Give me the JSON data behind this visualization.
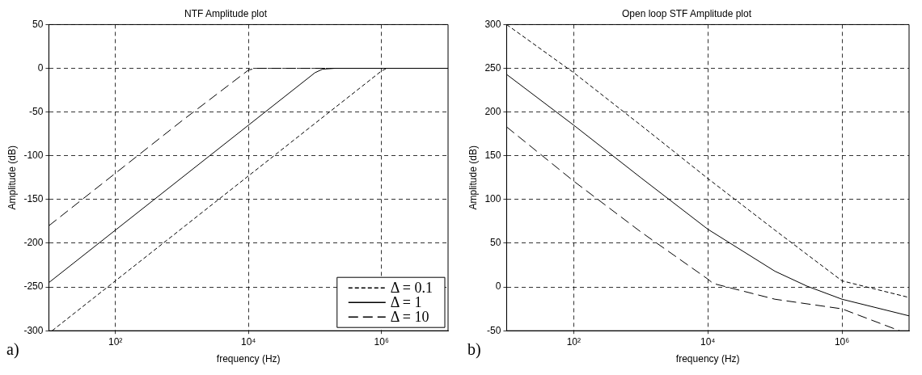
{
  "chart_data": [
    {
      "type": "line",
      "title": "NTF Amplitude plot",
      "xlabel": "frequency (Hz)",
      "ylabel": "Amplitude (dB)",
      "log": "x",
      "grid": true,
      "legend": "bottom right",
      "xlim": [
        10,
        10000000
      ],
      "ylim": [
        -300,
        50
      ],
      "xticks": [
        {
          "value": 100,
          "label": "10²"
        },
        {
          "value": 10000,
          "label": "10⁴"
        },
        {
          "value": 1000000,
          "label": "10⁶"
        }
      ],
      "yticks": [
        -300,
        -250,
        -200,
        -150,
        -100,
        -50,
        0,
        50
      ],
      "annotations": [
        "a)"
      ],
      "series": [
        {
          "name": "Δ = 0.1",
          "color": "#000000",
          "line_style": "dotted",
          "x": [
            11.2,
            100,
            1000,
            10000,
            100000,
            1000000,
            1200000,
            10000000
          ],
          "values": [
            -300,
            -243,
            -183,
            -123,
            -63,
            -3,
            0,
            0
          ]
        },
        {
          "name": "Δ = 1",
          "color": "#000000",
          "line_style": "solid",
          "x": [
            10,
            100,
            1000,
            10000,
            100000,
            130000,
            200000,
            10000000
          ],
          "values": [
            -245,
            -185,
            -125,
            -65,
            -5,
            -1,
            0,
            0
          ]
        },
        {
          "name": "Δ = 10",
          "color": "#000000",
          "line_style": "dashed",
          "x": [
            10,
            100,
            1000,
            10000,
            13000,
            10000000
          ],
          "values": [
            -180,
            -120,
            -60,
            -2,
            0,
            0
          ]
        }
      ]
    },
    {
      "type": "line",
      "title": "Open loop STF Amplitude plot",
      "xlabel": "frequency (Hz)",
      "ylabel": "Amplitude (dB)",
      "log": "x",
      "grid": true,
      "xlim": [
        10,
        10000000
      ],
      "ylim": [
        -50,
        300
      ],
      "xticks": [
        {
          "value": 100,
          "label": "10²"
        },
        {
          "value": 10000,
          "label": "10⁴"
        },
        {
          "value": 1000000,
          "label": "10⁶"
        }
      ],
      "yticks": [
        -50,
        0,
        50,
        100,
        150,
        200,
        250,
        300
      ],
      "annotations": [
        "b)"
      ],
      "series": [
        {
          "color": "#000000",
          "line_style": "dotted",
          "x": [
            10,
            100,
            1000,
            10000,
            100000,
            1000000,
            10000000
          ],
          "values": [
            300,
            245,
            185,
            124,
            65,
            7,
            -12
          ]
        },
        {
          "color": "#000000",
          "line_style": "solid",
          "x": [
            10,
            100,
            1000,
            10000,
            100000,
            300000,
            1000000,
            10000000
          ],
          "values": [
            243,
            185,
            125,
            66,
            18,
            1,
            -14,
            -33
          ]
        },
        {
          "color": "#000000",
          "line_style": "dashed",
          "x": [
            10,
            100,
            1000,
            10000,
            12000,
            100000,
            1000000,
            7200000
          ],
          "values": [
            183,
            121,
            63,
            9,
            4,
            -14,
            -25,
            -50
          ]
        }
      ]
    }
  ]
}
